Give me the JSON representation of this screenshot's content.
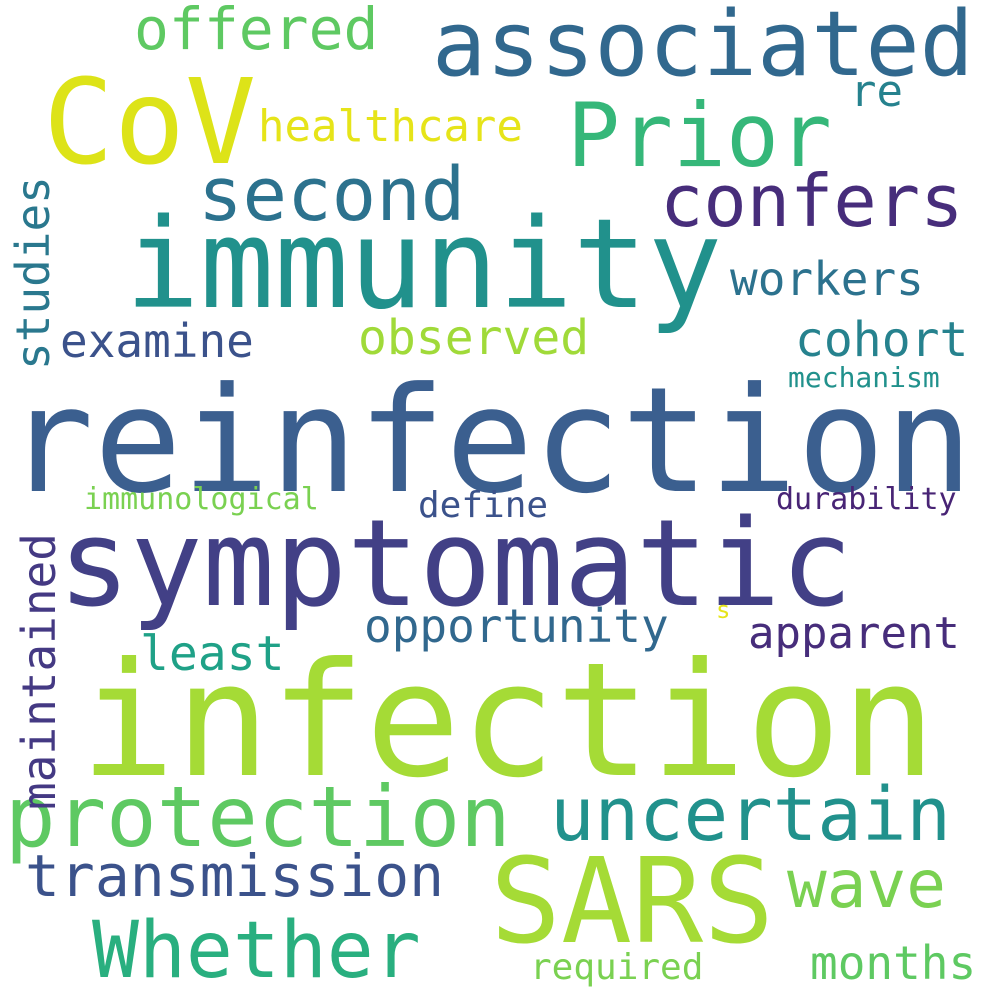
{
  "words": {
    "reinfection": {
      "text": "reinfection",
      "color": "#3b5f8f"
    },
    "infection": {
      "text": "infection",
      "color": "#a5db36"
    },
    "symptomatic": {
      "text": "symptomatic",
      "color": "#424086"
    },
    "immunity": {
      "text": "immunity",
      "color": "#21918c"
    },
    "cov": {
      "text": "CoV",
      "color": "#dde318"
    },
    "sars": {
      "text": "SARS",
      "color": "#a5db36"
    },
    "protection": {
      "text": "protection",
      "color": "#5ec962"
    },
    "associated": {
      "text": "associated",
      "color": "#31688e"
    },
    "prior": {
      "text": "Prior",
      "color": "#35b779"
    },
    "confers": {
      "text": "confers",
      "color": "#472d7b"
    },
    "second": {
      "text": "second",
      "color": "#2c728e"
    },
    "uncertain": {
      "text": "uncertain",
      "color": "#21918c"
    },
    "whether": {
      "text": "Whether",
      "color": "#29af7f"
    },
    "transmission": {
      "text": "transmission",
      "color": "#3b528b"
    },
    "wave": {
      "text": "wave",
      "color": "#7ad151"
    },
    "offered": {
      "text": "offered",
      "color": "#5ec962"
    },
    "healthcare": {
      "text": "healthcare",
      "color": "#e6e419"
    },
    "re": {
      "text": "re",
      "color": "#26828e"
    },
    "workers": {
      "text": "workers",
      "color": "#2c728e"
    },
    "examine": {
      "text": "examine",
      "color": "#3b528b"
    },
    "observed": {
      "text": "observed",
      "color": "#a0da39"
    },
    "cohort": {
      "text": "cohort",
      "color": "#26828e"
    },
    "mechanism": {
      "text": "mechanism",
      "color": "#21918c"
    },
    "studies": {
      "text": "studies",
      "color": "#2a788e"
    },
    "maintained": {
      "text": "maintained",
      "color": "#443983"
    },
    "immunological": {
      "text": "immunological",
      "color": "#7ad151"
    },
    "define": {
      "text": "define",
      "color": "#3b528b"
    },
    "durability": {
      "text": "durability",
      "color": "#482475"
    },
    "opportunity": {
      "text": "opportunity",
      "color": "#31688e"
    },
    "apparent": {
      "text": "apparent",
      "color": "#472d7b"
    },
    "least": {
      "text": "least",
      "color": "#1fa187"
    },
    "s": {
      "text": "s",
      "color": "#e6e419"
    },
    "months": {
      "text": "months",
      "color": "#5ec962"
    },
    "required": {
      "text": "required",
      "color": "#7ad151"
    }
  }
}
